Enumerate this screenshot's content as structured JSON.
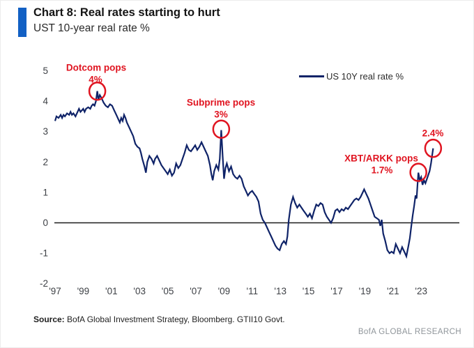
{
  "header": {
    "title": "Chart 8: Real rates starting to hurt",
    "subtitle": "UST 10-year real rate %"
  },
  "footer": {
    "source_label": "Source:",
    "source_text": "BofA Global Investment Strategy, Bloomberg. GTII10 Govt.",
    "branding": "BofA GLOBAL RESEARCH"
  },
  "colors": {
    "line_navy": "#0f2368",
    "accent_blue": "#1260c4",
    "annotation_red": "#e01420",
    "branding_gray": "#8f959a",
    "zero_line_black": "#1a1a1a"
  },
  "chart_data": {
    "type": "line",
    "title": "Chart 8: Real rates starting to hurt",
    "subtitle": "UST 10-year real rate %",
    "xlabel": "",
    "ylabel": "UST 10-year real rate %",
    "grid": false,
    "legend_position": "top-right-inside",
    "legend": "US 10Y real rate %",
    "x_range": [
      1997,
      2024
    ],
    "ylim": [
      -2,
      5
    ],
    "zero_line": true,
    "y_ticks": [
      {
        "value": 5,
        "label": "5"
      },
      {
        "value": 4,
        "label": "4"
      },
      {
        "value": 3,
        "label": "3"
      },
      {
        "value": 2,
        "label": "2"
      },
      {
        "value": 1,
        "label": "1"
      },
      {
        "value": 0,
        "label": "0"
      },
      {
        "value": -1,
        "label": "-1"
      },
      {
        "value": -2,
        "label": "-2"
      }
    ],
    "x_ticks": [
      {
        "year": 1997,
        "label": "'97"
      },
      {
        "year": 1999,
        "label": "'99"
      },
      {
        "year": 2001,
        "label": "'01"
      },
      {
        "year": 2003,
        "label": "'03"
      },
      {
        "year": 2005,
        "label": "'05"
      },
      {
        "year": 2007,
        "label": "'07"
      },
      {
        "year": 2009,
        "label": "'09"
      },
      {
        "year": 2011,
        "label": "'11"
      },
      {
        "year": 2013,
        "label": "'13"
      },
      {
        "year": 2015,
        "label": "'15"
      },
      {
        "year": 2017,
        "label": "'17"
      },
      {
        "year": 2019,
        "label": "'19"
      },
      {
        "year": 2021,
        "label": "'21"
      },
      {
        "year": 2023,
        "label": "'23"
      }
    ],
    "series": [
      {
        "name": "US 10Y real rate %",
        "color": "#0f2368",
        "points": [
          [
            1997.0,
            3.35
          ],
          [
            1997.1,
            3.5
          ],
          [
            1997.25,
            3.45
          ],
          [
            1997.4,
            3.55
          ],
          [
            1997.5,
            3.45
          ],
          [
            1997.6,
            3.55
          ],
          [
            1997.7,
            3.5
          ],
          [
            1997.85,
            3.6
          ],
          [
            1998.0,
            3.55
          ],
          [
            1998.1,
            3.65
          ],
          [
            1998.2,
            3.55
          ],
          [
            1998.3,
            3.6
          ],
          [
            1998.45,
            3.5
          ],
          [
            1998.6,
            3.65
          ],
          [
            1998.7,
            3.75
          ],
          [
            1998.8,
            3.65
          ],
          [
            1998.9,
            3.7
          ],
          [
            1999.0,
            3.75
          ],
          [
            1999.1,
            3.65
          ],
          [
            1999.2,
            3.75
          ],
          [
            1999.35,
            3.8
          ],
          [
            1999.5,
            3.75
          ],
          [
            1999.6,
            3.85
          ],
          [
            1999.7,
            3.9
          ],
          [
            1999.8,
            3.85
          ],
          [
            1999.9,
            4.0
          ],
          [
            2000.0,
            4.33
          ],
          [
            2000.08,
            4.05
          ],
          [
            2000.18,
            4.2
          ],
          [
            2000.3,
            4.1
          ],
          [
            2000.45,
            3.95
          ],
          [
            2000.6,
            3.85
          ],
          [
            2000.75,
            3.8
          ],
          [
            2000.9,
            3.9
          ],
          [
            2001.05,
            3.85
          ],
          [
            2001.2,
            3.7
          ],
          [
            2001.35,
            3.55
          ],
          [
            2001.5,
            3.4
          ],
          [
            2001.6,
            3.3
          ],
          [
            2001.7,
            3.45
          ],
          [
            2001.8,
            3.35
          ],
          [
            2001.9,
            3.55
          ],
          [
            2002.0,
            3.45
          ],
          [
            2002.1,
            3.3
          ],
          [
            2002.25,
            3.15
          ],
          [
            2002.4,
            3.0
          ],
          [
            2002.55,
            2.85
          ],
          [
            2002.7,
            2.6
          ],
          [
            2002.85,
            2.5
          ],
          [
            2003.0,
            2.45
          ],
          [
            2003.1,
            2.3
          ],
          [
            2003.2,
            2.1
          ],
          [
            2003.35,
            1.85
          ],
          [
            2003.45,
            1.65
          ],
          [
            2003.55,
            2.0
          ],
          [
            2003.7,
            2.2
          ],
          [
            2003.85,
            2.1
          ],
          [
            2004.0,
            1.95
          ],
          [
            2004.1,
            2.1
          ],
          [
            2004.25,
            2.2
          ],
          [
            2004.4,
            2.05
          ],
          [
            2004.55,
            1.9
          ],
          [
            2004.7,
            1.8
          ],
          [
            2004.85,
            1.7
          ],
          [
            2005.0,
            1.6
          ],
          [
            2005.15,
            1.75
          ],
          [
            2005.3,
            1.55
          ],
          [
            2005.45,
            1.65
          ],
          [
            2005.6,
            1.95
          ],
          [
            2005.75,
            1.8
          ],
          [
            2005.9,
            1.9
          ],
          [
            2006.05,
            2.1
          ],
          [
            2006.2,
            2.3
          ],
          [
            2006.35,
            2.55
          ],
          [
            2006.5,
            2.4
          ],
          [
            2006.65,
            2.35
          ],
          [
            2006.8,
            2.45
          ],
          [
            2006.95,
            2.55
          ],
          [
            2007.1,
            2.4
          ],
          [
            2007.25,
            2.5
          ],
          [
            2007.4,
            2.65
          ],
          [
            2007.55,
            2.5
          ],
          [
            2007.7,
            2.35
          ],
          [
            2007.85,
            2.2
          ],
          [
            2008.0,
            1.9
          ],
          [
            2008.1,
            1.6
          ],
          [
            2008.2,
            1.4
          ],
          [
            2008.3,
            1.7
          ],
          [
            2008.45,
            1.9
          ],
          [
            2008.6,
            1.75
          ],
          [
            2008.7,
            2.1
          ],
          [
            2008.8,
            3.05
          ],
          [
            2008.9,
            2.2
          ],
          [
            2009.0,
            1.45
          ],
          [
            2009.1,
            1.8
          ],
          [
            2009.2,
            1.95
          ],
          [
            2009.35,
            1.7
          ],
          [
            2009.5,
            1.85
          ],
          [
            2009.65,
            1.6
          ],
          [
            2009.8,
            1.5
          ],
          [
            2009.95,
            1.45
          ],
          [
            2010.1,
            1.55
          ],
          [
            2010.25,
            1.45
          ],
          [
            2010.4,
            1.2
          ],
          [
            2010.55,
            1.05
          ],
          [
            2010.7,
            0.9
          ],
          [
            2010.85,
            1.0
          ],
          [
            2011.0,
            1.05
          ],
          [
            2011.15,
            0.95
          ],
          [
            2011.3,
            0.85
          ],
          [
            2011.45,
            0.7
          ],
          [
            2011.6,
            0.3
          ],
          [
            2011.75,
            0.1
          ],
          [
            2011.9,
            0.0
          ],
          [
            2012.05,
            -0.15
          ],
          [
            2012.2,
            -0.3
          ],
          [
            2012.35,
            -0.45
          ],
          [
            2012.5,
            -0.6
          ],
          [
            2012.65,
            -0.75
          ],
          [
            2012.8,
            -0.85
          ],
          [
            2012.95,
            -0.9
          ],
          [
            2013.1,
            -0.7
          ],
          [
            2013.25,
            -0.6
          ],
          [
            2013.4,
            -0.7
          ],
          [
            2013.5,
            -0.45
          ],
          [
            2013.6,
            0.1
          ],
          [
            2013.75,
            0.6
          ],
          [
            2013.9,
            0.85
          ],
          [
            2014.05,
            0.65
          ],
          [
            2014.2,
            0.5
          ],
          [
            2014.35,
            0.6
          ],
          [
            2014.5,
            0.5
          ],
          [
            2014.65,
            0.4
          ],
          [
            2014.8,
            0.3
          ],
          [
            2014.95,
            0.2
          ],
          [
            2015.1,
            0.3
          ],
          [
            2015.25,
            0.15
          ],
          [
            2015.4,
            0.4
          ],
          [
            2015.55,
            0.6
          ],
          [
            2015.7,
            0.55
          ],
          [
            2015.85,
            0.65
          ],
          [
            2016.0,
            0.6
          ],
          [
            2016.15,
            0.35
          ],
          [
            2016.3,
            0.2
          ],
          [
            2016.45,
            0.1
          ],
          [
            2016.6,
            0.0
          ],
          [
            2016.75,
            0.15
          ],
          [
            2016.9,
            0.4
          ],
          [
            2017.05,
            0.45
          ],
          [
            2017.2,
            0.35
          ],
          [
            2017.35,
            0.45
          ],
          [
            2017.5,
            0.4
          ],
          [
            2017.65,
            0.5
          ],
          [
            2017.8,
            0.45
          ],
          [
            2017.95,
            0.55
          ],
          [
            2018.1,
            0.65
          ],
          [
            2018.25,
            0.75
          ],
          [
            2018.4,
            0.8
          ],
          [
            2018.55,
            0.75
          ],
          [
            2018.7,
            0.85
          ],
          [
            2018.85,
            1.0
          ],
          [
            2018.95,
            1.1
          ],
          [
            2019.1,
            0.95
          ],
          [
            2019.25,
            0.8
          ],
          [
            2019.4,
            0.6
          ],
          [
            2019.55,
            0.4
          ],
          [
            2019.7,
            0.2
          ],
          [
            2019.85,
            0.15
          ],
          [
            2020.0,
            0.1
          ],
          [
            2020.1,
            -0.1
          ],
          [
            2020.2,
            0.1
          ],
          [
            2020.3,
            -0.35
          ],
          [
            2020.45,
            -0.6
          ],
          [
            2020.6,
            -0.9
          ],
          [
            2020.75,
            -1.0
          ],
          [
            2020.9,
            -0.95
          ],
          [
            2021.05,
            -1.0
          ],
          [
            2021.2,
            -0.7
          ],
          [
            2021.35,
            -0.85
          ],
          [
            2021.5,
            -1.0
          ],
          [
            2021.65,
            -0.8
          ],
          [
            2021.8,
            -0.95
          ],
          [
            2021.95,
            -1.1
          ],
          [
            2022.1,
            -0.75
          ],
          [
            2022.2,
            -0.5
          ],
          [
            2022.3,
            -0.1
          ],
          [
            2022.4,
            0.25
          ],
          [
            2022.5,
            0.55
          ],
          [
            2022.6,
            0.9
          ],
          [
            2022.68,
            0.8
          ],
          [
            2022.75,
            1.3
          ],
          [
            2022.8,
            1.65
          ],
          [
            2022.9,
            1.4
          ],
          [
            2023.0,
            1.5
          ],
          [
            2023.1,
            1.25
          ],
          [
            2023.2,
            1.4
          ],
          [
            2023.3,
            1.3
          ],
          [
            2023.45,
            1.5
          ],
          [
            2023.6,
            1.7
          ],
          [
            2023.7,
            1.95
          ],
          [
            2023.85,
            2.45
          ]
        ]
      }
    ],
    "annotations": [
      {
        "label": "Dotcom pops",
        "value_label": "4%",
        "anchor_year": 2000.0,
        "anchor_value": 4.33
      },
      {
        "label": "Subprime pops",
        "value_label": "3%",
        "anchor_year": 2008.8,
        "anchor_value": 3.08
      },
      {
        "label": "XBT/ARKK pops",
        "value_label": "1.7%",
        "anchor_year": 2022.8,
        "anchor_value": 1.66
      },
      {
        "label": "2.4%",
        "value_label": "",
        "anchor_year": 2023.85,
        "anchor_value": 2.45
      }
    ]
  }
}
